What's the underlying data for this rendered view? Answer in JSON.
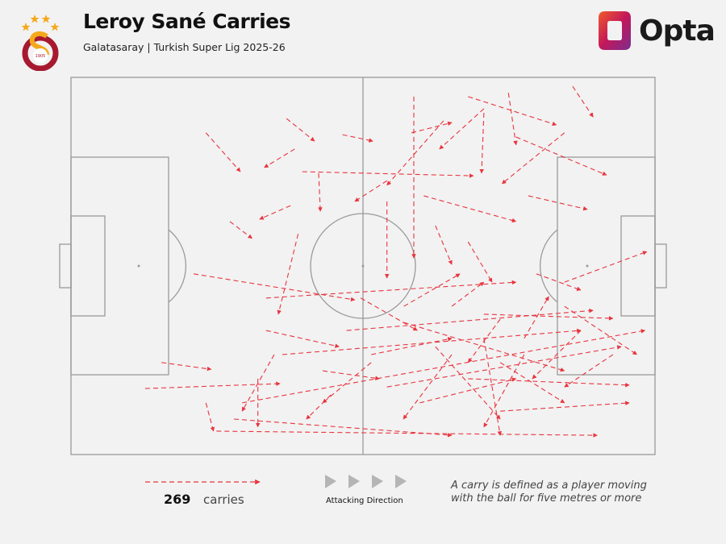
{
  "header": {
    "title": "Leroy Sané Carries",
    "subtitle": "Galatasaray | Turkish Super Lig 2025-26",
    "club_badge_text": "1905",
    "brand": "Opta"
  },
  "legend": {
    "count": "269",
    "count_label": "carries",
    "direction_label": "Attacking Direction",
    "note_line1": "A carry is defined as a player moving",
    "note_line2": "with the ball for five metres or more"
  },
  "colors": {
    "carry": "#e8343e",
    "pitch_lines": "#9a9a9a",
    "background": "#f2f2f2",
    "direction_arrows": "#b5b5b5"
  },
  "chart_data": {
    "type": "pitch-carry-map",
    "coordinate_system": "pitch 0-100 length (left to right, attacking right), 0-100 width (top to bottom)",
    "total_carries": 269,
    "carries_sample": [
      [
        23.1,
        14.7,
        29.0,
        25.0
      ],
      [
        36.9,
        10.9,
        41.7,
        16.9
      ],
      [
        38.3,
        19.0,
        33.1,
        23.9
      ],
      [
        46.5,
        15.2,
        51.7,
        16.9
      ],
      [
        39.6,
        25.0,
        68.9,
        26.1
      ],
      [
        42.4,
        25.4,
        42.7,
        35.5
      ],
      [
        37.6,
        34.0,
        32.3,
        37.6
      ],
      [
        27.2,
        38.2,
        31.0,
        42.7
      ],
      [
        58.7,
        5.1,
        58.7,
        47.9
      ],
      [
        68.0,
        5.1,
        83.1,
        12.6
      ],
      [
        85.9,
        2.4,
        89.4,
        10.5
      ],
      [
        76.2,
        15.8,
        91.7,
        25.9
      ],
      [
        84.5,
        14.7,
        73.8,
        28.2
      ],
      [
        78.3,
        31.4,
        88.4,
        35.0
      ],
      [
        60.4,
        31.4,
        76.2,
        38.2
      ],
      [
        70.7,
        8.3,
        63.1,
        19.0
      ],
      [
        58.3,
        14.7,
        65.2,
        12.0
      ],
      [
        74.9,
        4.1,
        76.2,
        17.9
      ],
      [
        70.7,
        9.4,
        70.3,
        25.4
      ],
      [
        54.1,
        27.4,
        48.6,
        32.9
      ],
      [
        54.1,
        32.9,
        54.1,
        53.2
      ],
      [
        21.0,
        52.1,
        48.6,
        59.0
      ],
      [
        12.7,
        82.5,
        35.8,
        81.2
      ],
      [
        15.5,
        75.6,
        24.0,
        77.4
      ],
      [
        27.9,
        90.6,
        65.2,
        94.9
      ],
      [
        24.9,
        93.8,
        90.1,
        94.9
      ],
      [
        29.3,
        86.3,
        98.3,
        67.1
      ],
      [
        54.1,
        82.1,
        94.2,
        71.4
      ],
      [
        68.0,
        79.9,
        95.6,
        81.6
      ],
      [
        84.5,
        54.3,
        98.6,
        46.2
      ],
      [
        70.7,
        62.8,
        92.8,
        63.9
      ],
      [
        47.2,
        67.1,
        89.4,
        61.8
      ],
      [
        36.2,
        73.5,
        87.3,
        67.1
      ],
      [
        33.4,
        58.5,
        76.2,
        54.3
      ],
      [
        65.2,
        60.7,
        70.7,
        54.3
      ],
      [
        77.6,
        69.2,
        81.8,
        58.1
      ],
      [
        73.5,
        75.6,
        84.5,
        86.3
      ],
      [
        62.4,
        71.4,
        73.5,
        90.6
      ],
      [
        57.0,
        60.7,
        66.6,
        52.1
      ],
      [
        38.9,
        41.5,
        35.5,
        62.8
      ],
      [
        32.0,
        79.9,
        32.0,
        92.7
      ],
      [
        23.1,
        86.3,
        24.4,
        93.8
      ],
      [
        44.5,
        84.2,
        40.3,
        90.6
      ],
      [
        51.4,
        73.5,
        65.2,
        69.2
      ],
      [
        59.7,
        86.3,
        76.2,
        79.9
      ],
      [
        73.5,
        88.5,
        95.6,
        86.3
      ],
      [
        70.7,
        69.2,
        73.5,
        94.9
      ],
      [
        62.4,
        39.3,
        65.2,
        49.6
      ],
      [
        68.0,
        43.6,
        72.1,
        54.3
      ],
      [
        79.7,
        52.1,
        87.3,
        56.4
      ],
      [
        84.5,
        60.7,
        96.9,
        73.5
      ],
      [
        51.4,
        75.6,
        43.1,
        86.3
      ],
      [
        34.8,
        73.5,
        29.3,
        88.5
      ],
      [
        65.2,
        73.5,
        56.9,
        90.6
      ],
      [
        77.6,
        73.5,
        70.7,
        92.7
      ],
      [
        33.4,
        67.1,
        45.9,
        71.4
      ],
      [
        57.0,
        65.0,
        84.5,
        77.8
      ],
      [
        73.5,
        64.1,
        68.0,
        75.6
      ],
      [
        87.3,
        67.1,
        79.0,
        79.9
      ],
      [
        92.8,
        73.5,
        84.5,
        82.1
      ],
      [
        49.6,
        58.5,
        59.3,
        67.1
      ],
      [
        43.1,
        77.8,
        52.8,
        79.9
      ],
      [
        63.8,
        11.5,
        54.1,
        28.6
      ]
    ]
  }
}
